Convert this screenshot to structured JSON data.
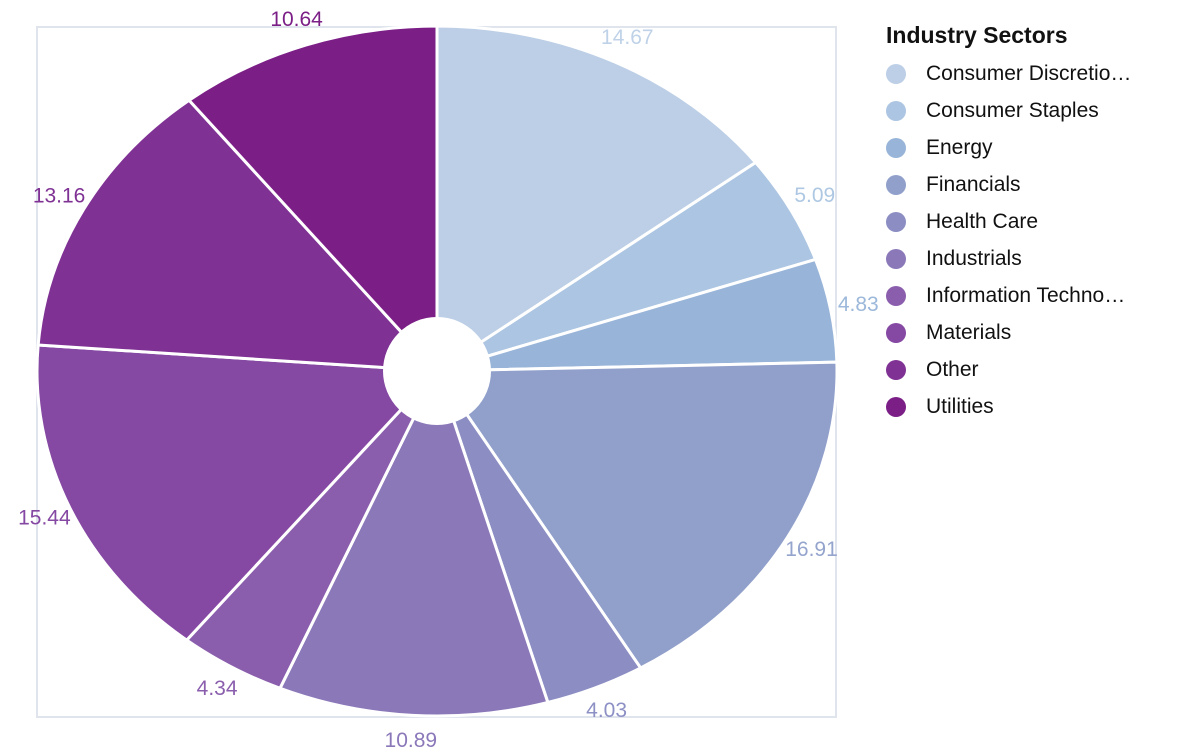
{
  "chart_data": {
    "type": "pie",
    "inner_hole": true,
    "categories": [
      "Consumer Discretio…",
      "Consumer Staples",
      "Energy",
      "Financials",
      "Health Care",
      "Industrials",
      "Information Techno…",
      "Materials",
      "Other",
      "Utilities"
    ],
    "values": [
      14.67,
      5.09,
      4.83,
      16.91,
      4.03,
      10.89,
      4.34,
      15.44,
      13.16,
      10.64
    ],
    "colors": [
      "#bccfe6",
      "#abc5e2",
      "#98b4d8",
      "#91a0cb",
      "#8b8dc3",
      "#8b78b9",
      "#8a5ead",
      "#8548a3",
      "#7f3194",
      "#7b1f87"
    ],
    "label_colors": [
      "#bfd2e8",
      "#aec8e3",
      "#9cb8da",
      "#94a4cd",
      "#8d90c5",
      "#8b78b9",
      "#8a5ead",
      "#8548a3",
      "#7f3194",
      "#7b1f87"
    ],
    "legend": {
      "title": "Industry Sectors",
      "position": "right"
    }
  }
}
